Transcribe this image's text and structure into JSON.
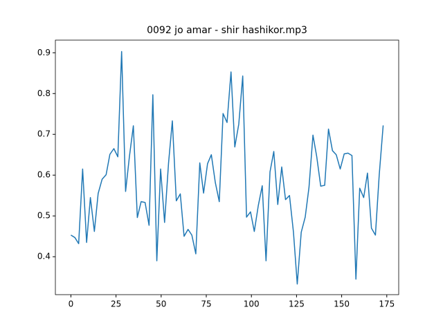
{
  "chart_data": {
    "type": "line",
    "title": "0092 jo amar - shir hashikor.mp3",
    "x": [
      0,
      2.2,
      4.3,
      6.5,
      8.7,
      10.8,
      13.0,
      15.1,
      17.3,
      19.5,
      21.6,
      23.8,
      26.0,
      28.1,
      30.3,
      32.4,
      34.6,
      36.8,
      38.9,
      41.1,
      43.3,
      45.4,
      47.6,
      49.7,
      51.9,
      54.1,
      56.2,
      58.4,
      60.6,
      62.7,
      64.9,
      67.0,
      69.2,
      71.4,
      73.5,
      75.7,
      77.8,
      80.0,
      82.2,
      84.3,
      86.5,
      88.7,
      90.8,
      93.0,
      95.2,
      97.3,
      99.5,
      101.6,
      103.8,
      106.0,
      108.1,
      110.3,
      112.4,
      114.6,
      116.8,
      118.9,
      121.1,
      123.3,
      125.4,
      127.6,
      129.8,
      131.9,
      134.1,
      136.2,
      138.4,
      140.6,
      142.7,
      144.9,
      147.0,
      149.2,
      151.4,
      153.5,
      155.7,
      157.9,
      160.0,
      162.2,
      164.3,
      166.5,
      168.7,
      170.8,
      173.0
    ],
    "series": [
      {
        "color": "#1f77b4",
        "values": [
          0.453,
          0.447,
          0.432,
          0.615,
          0.435,
          0.545,
          0.462,
          0.555,
          0.59,
          0.601,
          0.651,
          0.665,
          0.645,
          0.903,
          0.56,
          0.645,
          0.721,
          0.496,
          0.535,
          0.533,
          0.477,
          0.797,
          0.39,
          0.615,
          0.484,
          0.63,
          0.733,
          0.537,
          0.554,
          0.45,
          0.467,
          0.453,
          0.407,
          0.63,
          0.556,
          0.628,
          0.65,
          0.582,
          0.535,
          0.751,
          0.729,
          0.853,
          0.669,
          0.725,
          0.843,
          0.497,
          0.51,
          0.462,
          0.525,
          0.574,
          0.39,
          0.608,
          0.658,
          0.528,
          0.62,
          0.54,
          0.55,
          0.46,
          0.333,
          0.46,
          0.497,
          0.57,
          0.698,
          0.645,
          0.573,
          0.575,
          0.713,
          0.66,
          0.65,
          0.615,
          0.652,
          0.654,
          0.648,
          0.345,
          0.568,
          0.545,
          0.605,
          0.47,
          0.453,
          0.6,
          0.722
        ]
      }
    ],
    "xlim": [
      -8.6,
      181.6
    ],
    "ylim": [
      0.307,
      0.931
    ],
    "xticks": [
      0,
      25,
      50,
      75,
      100,
      125,
      150,
      175
    ],
    "yticks": [
      0.4,
      0.5,
      0.6,
      0.7,
      0.8,
      0.9
    ]
  }
}
